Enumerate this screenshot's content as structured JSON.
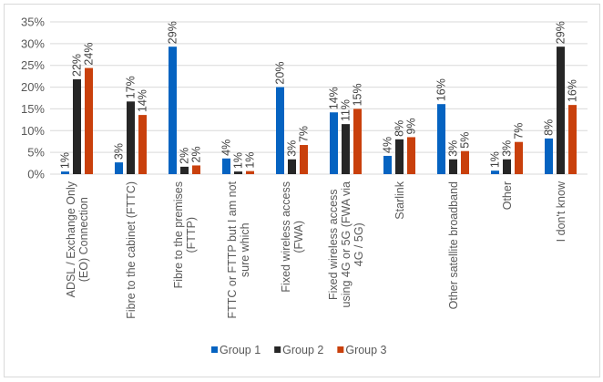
{
  "chart_data": {
    "type": "bar",
    "title": "",
    "xlabel": "",
    "ylabel": "",
    "ylim": [
      0,
      35
    ],
    "yticks": [
      "0%",
      "5%",
      "10%",
      "15%",
      "20%",
      "25%",
      "30%",
      "35%"
    ],
    "grid": true,
    "legend_position": "bottom",
    "categories": [
      [
        "ADSL / Exchange Only",
        "(EO) Connection"
      ],
      [
        "Fibre to the cabinet (FTTC)"
      ],
      [
        "Fibre to the premises",
        "(FTTP)"
      ],
      [
        "FTTC or FTTP but I am not",
        "sure which"
      ],
      [
        "Fixed wireless access",
        "(FWA)"
      ],
      [
        "Fixed wireless access",
        "using 4G or 5G (FWA via",
        "4G / 5G)"
      ],
      [
        "Starlink"
      ],
      [
        "Other satellite broadband"
      ],
      [
        "Other"
      ],
      [
        "I don't know"
      ]
    ],
    "series": [
      {
        "name": "Group 1",
        "color": "#0563c1",
        "values": [
          0.6,
          2.7,
          29.3,
          3.6,
          20.0,
          14.2,
          4.2,
          16.1,
          0.8,
          8.2
        ],
        "labels": [
          "1%",
          "3%",
          "29%",
          "4%",
          "20%",
          "14%",
          "4%",
          "16%",
          "1%",
          "8%"
        ]
      },
      {
        "name": "Group 2",
        "color": "#262626",
        "values": [
          21.8,
          16.7,
          1.7,
          0.6,
          3.4,
          11.5,
          8.0,
          3.4,
          3.4,
          29.3
        ],
        "labels": [
          "22%",
          "17%",
          "2%",
          "1%",
          "3%",
          "11%",
          "8%",
          "3%",
          "3%",
          "29%"
        ]
      },
      {
        "name": "Group 3",
        "color": "#c9400c",
        "values": [
          24.4,
          13.6,
          2.0,
          0.7,
          6.7,
          15.0,
          8.5,
          5.3,
          7.4,
          15.9
        ],
        "labels": [
          "24%",
          "14%",
          "2%",
          "1%",
          "7%",
          "15%",
          "9%",
          "5%",
          "7%",
          "16%"
        ]
      }
    ]
  }
}
